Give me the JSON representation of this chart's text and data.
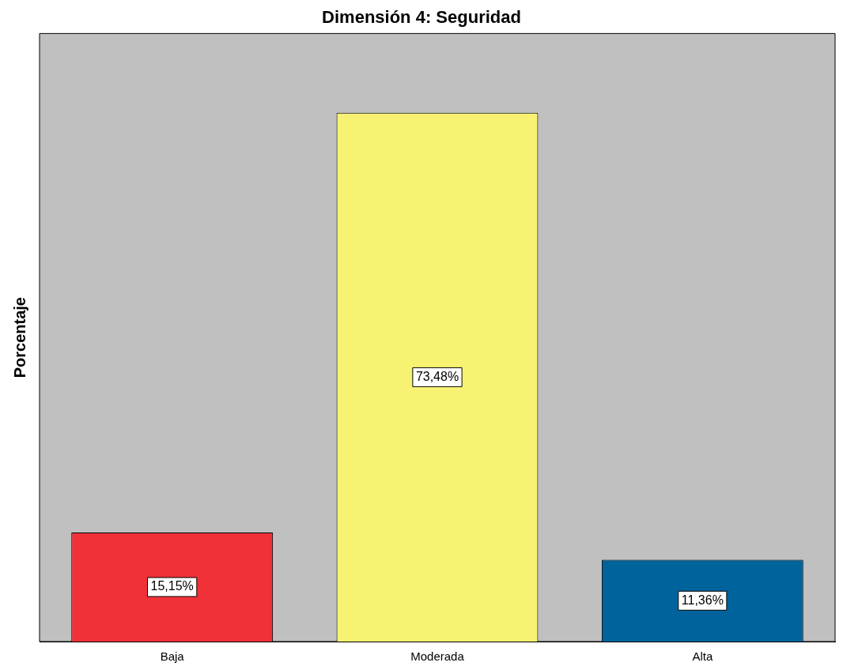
{
  "chart_data": {
    "type": "bar",
    "title": "Dimensión 4: Seguridad",
    "ylabel": "Porcentaje",
    "categories": [
      "Baja",
      "Moderada",
      "Alta"
    ],
    "values": [
      15.15,
      73.48,
      11.36
    ],
    "colors": [
      "#f03238",
      "#f8f272",
      "#00639c"
    ],
    "value_labels": [
      "15,15%",
      "73,48%",
      "11,36%"
    ],
    "grid": false,
    "legend": false
  }
}
